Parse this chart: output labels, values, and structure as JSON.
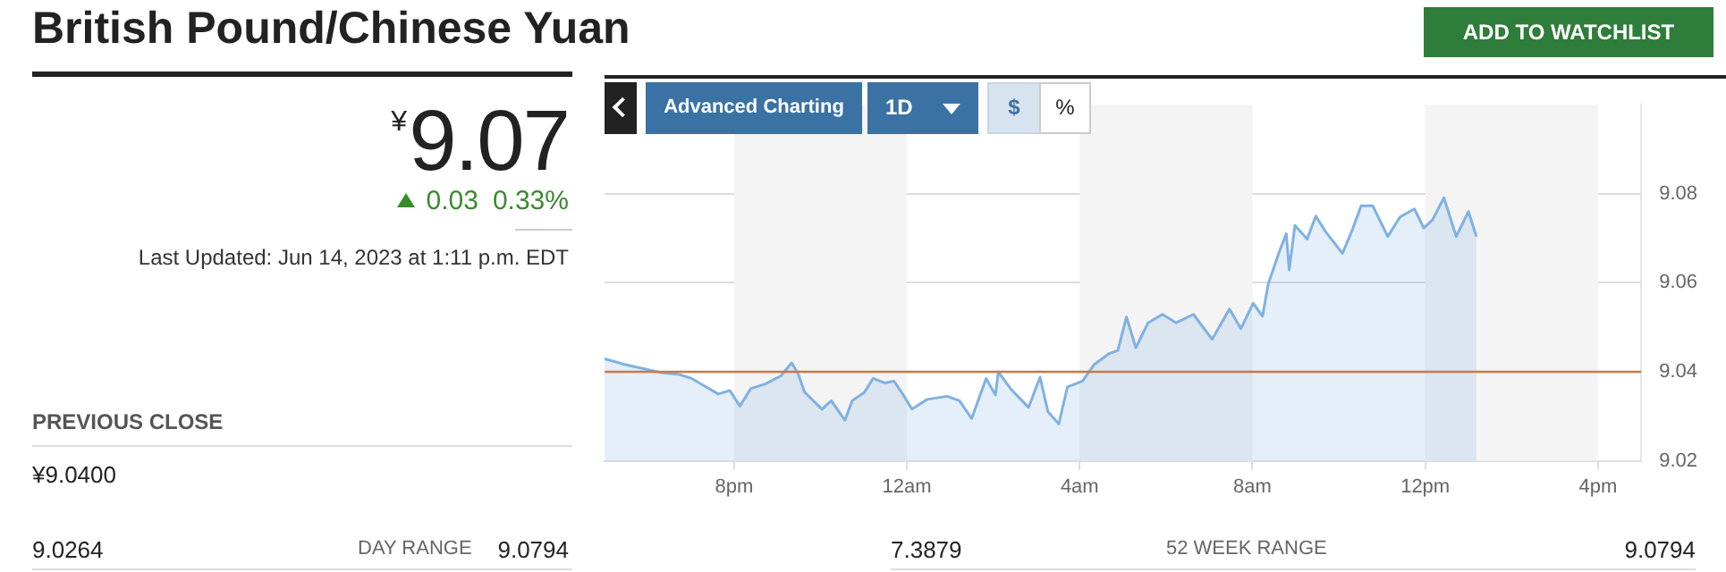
{
  "chart_data": {
    "type": "area",
    "title": "British Pound/Chinese Yuan",
    "x": [
      "2023-06-13T17:00",
      "2023-06-13T17:29",
      "2023-06-13T17:54",
      "2023-06-13T18:19",
      "2023-06-13T18:44",
      "2023-06-13T19:01",
      "2023-06-13T19:17",
      "2023-06-13T19:38",
      "2023-06-13T19:54",
      "2023-06-13T20:08",
      "2023-06-13T20:23",
      "2023-06-13T20:44",
      "2023-06-13T21:05",
      "2023-06-13T21:20",
      "2023-06-13T21:29",
      "2023-06-13T21:38",
      "2023-06-13T22:02",
      "2023-06-13T22:15",
      "2023-06-13T22:34",
      "2023-06-13T22:44",
      "2023-06-13T23:01",
      "2023-06-13T23:13",
      "2023-06-13T23:29",
      "2023-06-13T23:42",
      "2023-06-13T23:55",
      "2023-06-14T00:07",
      "2023-06-14T00:28",
      "2023-06-14T00:56",
      "2023-06-14T01:13",
      "2023-06-14T01:30",
      "2023-06-14T01:50",
      "2023-06-14T02:03",
      "2023-06-14T02:07",
      "2023-06-14T02:24",
      "2023-06-14T02:49",
      "2023-06-14T03:05",
      "2023-06-14T03:16",
      "2023-06-14T03:31",
      "2023-06-14T03:43",
      "2023-06-14T04:04",
      "2023-06-14T04:20",
      "2023-06-14T04:41",
      "2023-06-14T04:53",
      "2023-06-14T05:05",
      "2023-06-14T05:18",
      "2023-06-14T05:35",
      "2023-06-14T05:55",
      "2023-06-14T06:14",
      "2023-06-14T06:38",
      "2023-06-14T07:04",
      "2023-06-14T07:28",
      "2023-06-14T07:44",
      "2023-06-14T08:01",
      "2023-06-14T08:14",
      "2023-06-14T08:22",
      "2023-06-14T08:38",
      "2023-06-14T08:47",
      "2023-06-14T08:51",
      "2023-06-14T08:59",
      "2023-06-14T09:16",
      "2023-06-14T09:28",
      "2023-06-14T09:41",
      "2023-06-14T10:05",
      "2023-06-14T10:18",
      "2023-06-14T10:31",
      "2023-06-14T10:47",
      "2023-06-14T11:08",
      "2023-06-14T11:25",
      "2023-06-14T11:45",
      "2023-06-14T11:58",
      "2023-06-14T12:10",
      "2023-06-14T12:26",
      "2023-06-14T12:43",
      "2023-06-14T13:00",
      "2023-06-14T13:11"
    ],
    "values": [
      9.0429,
      9.0416,
      9.0407,
      9.0398,
      9.0394,
      9.0385,
      9.037,
      9.035,
      9.0358,
      9.0323,
      9.0362,
      9.0373,
      9.0391,
      9.042,
      9.0395,
      9.0354,
      9.0316,
      9.0335,
      9.0291,
      9.0335,
      9.0354,
      9.0385,
      9.0375,
      9.0379,
      9.0348,
      9.0316,
      9.0338,
      9.0345,
      9.0335,
      9.0295,
      9.0385,
      9.0348,
      9.04,
      9.0362,
      9.032,
      9.0388,
      9.031,
      9.0283,
      9.0366,
      9.0379,
      9.0416,
      9.0441,
      9.0448,
      9.0523,
      9.0454,
      9.051,
      9.0529,
      9.051,
      9.0529,
      9.0473,
      9.0541,
      9.0497,
      9.0554,
      9.0525,
      9.0598,
      9.0673,
      9.071,
      9.0629,
      9.0729,
      9.0698,
      9.075,
      9.0716,
      9.0666,
      9.0716,
      9.0773,
      9.0773,
      9.0704,
      9.0748,
      9.0766,
      9.0723,
      9.0741,
      9.0791,
      9.0704,
      9.076,
      9.0704
    ],
    "color": "#7fb1e3",
    "xlim": [
      "2023-06-13T17:00",
      "2023-06-14T17:00"
    ],
    "xticks": [
      {
        "value": "2023-06-13T20:00",
        "label": "8pm"
      },
      {
        "value": "2023-06-14T00:00",
        "label": "12am"
      },
      {
        "value": "2023-06-14T04:00",
        "label": "4am"
      },
      {
        "value": "2023-06-14T08:00",
        "label": "8am"
      },
      {
        "value": "2023-06-14T12:00",
        "label": "12pm"
      },
      {
        "value": "2023-06-14T16:00",
        "label": "4pm"
      }
    ],
    "ylim": [
      9.02,
      9.1
    ],
    "yticks": [
      9.02,
      9.04,
      9.06,
      9.08
    ],
    "grid": "y",
    "marker": "none",
    "line_style": "solid",
    "ref_lines": [
      {
        "axis": "y",
        "value": 9.04,
        "color": "#c8794a"
      }
    ],
    "bands": [
      {
        "axis": "x",
        "from": "2023-06-13T20:00",
        "to": "2023-06-14T00:00",
        "color": "#f4f4f4"
      },
      {
        "axis": "x",
        "from": "2023-06-14T04:00",
        "to": "2023-06-14T08:00",
        "color": "#f4f4f4"
      },
      {
        "axis": "x",
        "from": "2023-06-14T12:00",
        "to": "2023-06-14T16:00",
        "color": "#f4f4f4"
      }
    ],
    "annotations": [
      "$^{¥}$9.07",
      "0.03",
      "0.33%",
      "Last Updated: Jun 14, 2023 at 1:11 p.m. EDT",
      "PREVIOUS CLOSE",
      "¥9.0400",
      "9.0264",
      "DAY RANGE",
      "9.0794",
      "7.3879",
      "52 WEEK RANGE",
      "9.0794",
      "ADD TO WATCHLIST",
      "Advanced Charting",
      "1D",
      "$",
      "%"
    ]
  }
}
